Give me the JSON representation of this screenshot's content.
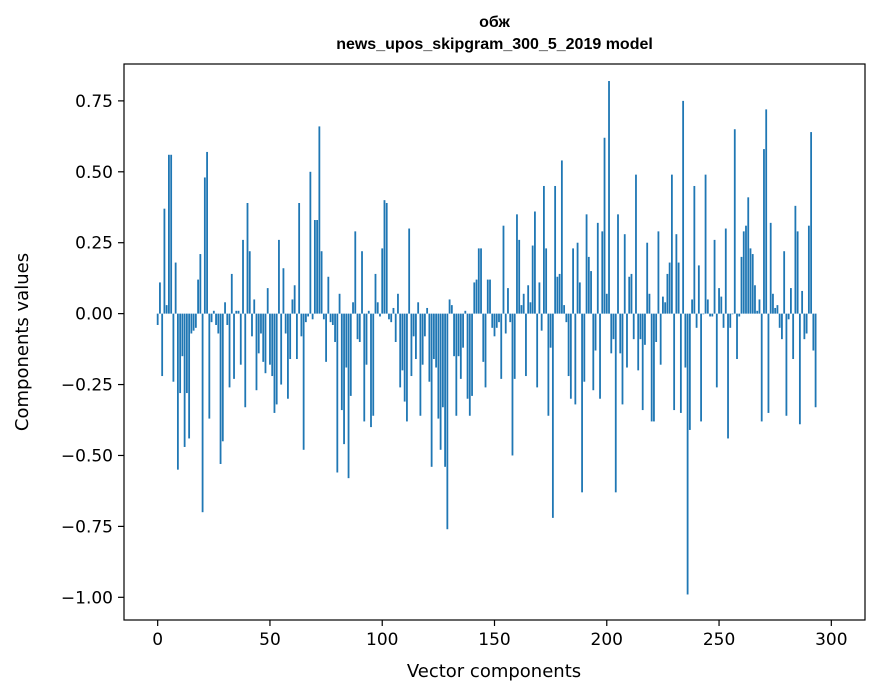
{
  "chart_data": {
    "type": "bar",
    "title_line1": "обж",
    "title_line2": "news_upos_skipgram_300_5_2019 model",
    "xlabel": "Vector components",
    "ylabel": "Components values",
    "xlim": [
      -15,
      315
    ],
    "ylim": [
      -1.08,
      0.88
    ],
    "xticks": [
      0,
      50,
      100,
      150,
      200,
      250,
      300
    ],
    "xtick_labels": [
      "0",
      "50",
      "100",
      "150",
      "200",
      "250",
      "300"
    ],
    "yticks": [
      -1.0,
      -0.75,
      -0.5,
      -0.25,
      0.0,
      0.25,
      0.5,
      0.75
    ],
    "ytick_labels": [
      "−1.00",
      "−0.75",
      "−0.50",
      "−0.25",
      "0.00",
      "0.25",
      "0.50",
      "0.75"
    ],
    "bar_color": "#1f77b4",
    "grid": false,
    "series": [
      {
        "name": "обж",
        "values": [
          -0.04,
          0.11,
          -0.22,
          0.37,
          0.03,
          0.56,
          0.56,
          -0.24,
          0.18,
          -0.55,
          -0.28,
          -0.15,
          -0.47,
          -0.28,
          -0.44,
          -0.07,
          -0.06,
          -0.05,
          0.12,
          0.21,
          -0.7,
          0.48,
          0.57,
          -0.37,
          -0.03,
          0.01,
          -0.04,
          -0.07,
          -0.53,
          -0.45,
          0.04,
          -0.04,
          -0.26,
          0.14,
          -0.23,
          0.01,
          0.01,
          -0.18,
          0.26,
          -0.33,
          0.39,
          0.22,
          -0.08,
          0.05,
          -0.27,
          -0.14,
          -0.07,
          -0.17,
          -0.21,
          0.09,
          -0.18,
          -0.22,
          -0.35,
          -0.32,
          0.26,
          -0.25,
          0.16,
          -0.07,
          -0.3,
          -0.16,
          0.05,
          0.1,
          -0.16,
          0.39,
          -0.08,
          -0.48,
          -0.03,
          -0.01,
          0.5,
          -0.02,
          0.33,
          0.33,
          0.66,
          0.22,
          -0.02,
          -0.17,
          0.13,
          -0.03,
          -0.04,
          -0.1,
          -0.56,
          0.07,
          -0.34,
          -0.46,
          -0.19,
          -0.58,
          -0.29,
          0.04,
          0.29,
          -0.09,
          -0.1,
          0.22,
          -0.38,
          -0.18,
          0.01,
          -0.4,
          -0.36,
          0.14,
          0.04,
          -0.01,
          0.23,
          0.4,
          0.39,
          -0.02,
          -0.03,
          0.02,
          -0.1,
          0.07,
          -0.26,
          -0.2,
          -0.31,
          -0.38,
          0.3,
          -0.22,
          -0.08,
          -0.16,
          0.04,
          -0.36,
          -0.18,
          -0.08,
          0.02,
          -0.24,
          -0.54,
          -0.16,
          -0.19,
          -0.37,
          -0.48,
          -0.33,
          -0.54,
          -0.76,
          0.05,
          0.03,
          -0.15,
          -0.36,
          -0.15,
          -0.23,
          -0.12,
          0.01,
          -0.3,
          -0.36,
          -0.29,
          0.11,
          0.12,
          0.23,
          0.23,
          -0.17,
          -0.26,
          0.12,
          0.12,
          -0.05,
          -0.08,
          -0.05,
          -0.03,
          -0.23,
          0.31,
          -0.07,
          0.09,
          -0.03,
          -0.5,
          -0.23,
          0.35,
          0.26,
          0.03,
          0.07,
          -0.22,
          0.1,
          0.04,
          0.24,
          0.36,
          -0.26,
          0.11,
          -0.06,
          0.45,
          0.23,
          -0.36,
          -0.12,
          -0.72,
          0.45,
          0.13,
          0.14,
          0.54,
          0.03,
          -0.03,
          -0.22,
          -0.3,
          0.23,
          -0.32,
          0.25,
          0.11,
          -0.63,
          -0.24,
          0.35,
          0.2,
          0.15,
          -0.27,
          -0.13,
          0.32,
          -0.3,
          0.29,
          0.62,
          0.07,
          0.82,
          -0.14,
          -0.09,
          -0.63,
          0.35,
          -0.14,
          -0.32,
          0.28,
          -0.19,
          0.13,
          0.14,
          -0.09,
          0.49,
          -0.2,
          -0.09,
          -0.34,
          -0.11,
          0.25,
          0.07,
          -0.38,
          -0.38,
          -0.1,
          0.29,
          -0.18,
          0.06,
          0.04,
          0.14,
          0.18,
          0.49,
          -0.34,
          0.28,
          0.18,
          -0.35,
          0.75,
          -0.19,
          -0.99,
          -0.41,
          0.05,
          0.45,
          -0.05,
          0.17,
          -0.38,
          0.0,
          0.49,
          0.05,
          -0.01,
          -0.01,
          0.26,
          -0.26,
          0.09,
          0.06,
          -0.05,
          0.3,
          -0.44,
          -0.05,
          0.0,
          0.65,
          -0.16,
          -0.01,
          0.2,
          0.29,
          0.31,
          0.41,
          0.23,
          0.21,
          0.1,
          0.01,
          0.05,
          -0.38,
          0.58,
          0.72,
          -0.35,
          0.32,
          0.07,
          0.02,
          0.03,
          -0.05,
          -0.09,
          0.22,
          -0.36,
          -0.02,
          0.09,
          -0.16,
          0.38,
          0.29,
          -0.39,
          0.08,
          -0.09,
          -0.07,
          0.31,
          0.64,
          -0.13,
          -0.33
        ]
      }
    ]
  }
}
